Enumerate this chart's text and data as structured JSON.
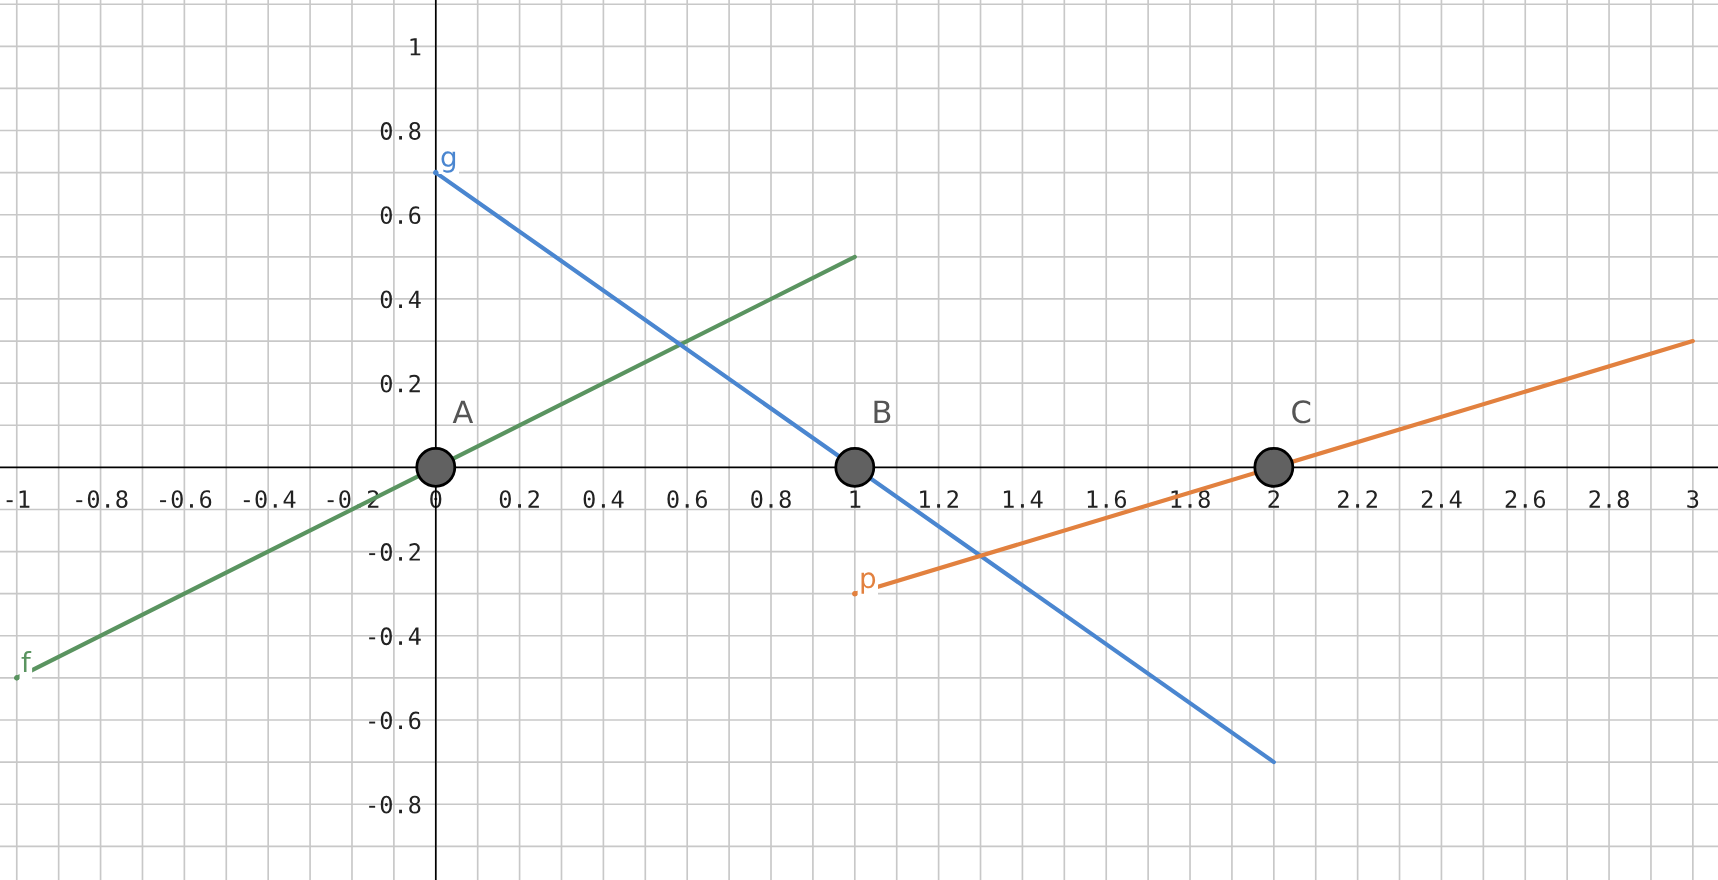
{
  "chart_data": {
    "type": "line",
    "xlim": [
      -1.04,
      3.06
    ],
    "ylim": [
      -0.98,
      1.11
    ],
    "xticks": [
      {
        "value": -1,
        "label": "-1"
      },
      {
        "value": -0.9,
        "label": null
      },
      {
        "value": -0.8,
        "label": "-0.8"
      },
      {
        "value": -0.7,
        "label": null
      },
      {
        "value": -0.6,
        "label": "-0.6"
      },
      {
        "value": -0.5,
        "label": null
      },
      {
        "value": -0.4,
        "label": "-0.4"
      },
      {
        "value": -0.3,
        "label": null
      },
      {
        "value": -0.2,
        "label": "-0.2"
      },
      {
        "value": -0.1,
        "label": null
      },
      0,
      {
        "value": 0.1,
        "label": null
      },
      0.2,
      {
        "value": 0.3,
        "label": null
      },
      0.4,
      {
        "value": 0.5,
        "label": null
      },
      0.6,
      {
        "value": 0.7,
        "label": null
      },
      0.8,
      {
        "value": 0.9,
        "label": null
      },
      1,
      {
        "value": 1.1,
        "label": null
      },
      1.2,
      {
        "value": 1.3,
        "label": null
      },
      1.4,
      {
        "value": 1.5,
        "label": null
      },
      1.6,
      {
        "value": 1.7,
        "label": null
      },
      1.8,
      {
        "value": 1.9,
        "label": null
      },
      2,
      {
        "value": 2.1,
        "label": null
      },
      2.2,
      {
        "value": 2.3,
        "label": null
      },
      2.4,
      {
        "value": 2.5,
        "label": null
      },
      2.6,
      {
        "value": 2.7,
        "label": null
      },
      2.8,
      {
        "value": 2.9,
        "label": null
      },
      3
    ],
    "yticks": [
      {
        "value": -0.9,
        "label": null
      },
      {
        "value": -0.8,
        "label": "-0.8"
      },
      {
        "value": -0.7,
        "label": null
      },
      {
        "value": -0.6,
        "label": "-0.6"
      },
      {
        "value": -0.5,
        "label": null
      },
      {
        "value": -0.4,
        "label": "-0.4"
      },
      {
        "value": -0.3,
        "label": null
      },
      {
        "value": -0.2,
        "label": "-0.2"
      },
      {
        "value": -0.1,
        "label": null
      },
      {
        "value": 0.1,
        "label": null
      },
      0.2,
      {
        "value": 0.3,
        "label": null
      },
      0.4,
      {
        "value": 0.5,
        "label": null
      },
      0.6,
      {
        "value": 0.7,
        "label": null
      },
      0.8,
      {
        "value": 0.9,
        "label": null
      },
      1,
      {
        "value": 1.1,
        "label": null
      }
    ],
    "grid": true,
    "marker": "none",
    "line_style": "solid",
    "series": [
      {
        "name": "f",
        "color": "#5a9460",
        "x": [
          -1,
          1
        ],
        "values": [
          -0.5,
          0.5
        ]
      },
      {
        "name": "g",
        "color": "#4a86d0",
        "x": [
          0,
          2
        ],
        "values": [
          0.7,
          -0.7
        ]
      },
      {
        "name": "p",
        "color": "#e2813f",
        "x": [
          1,
          3
        ],
        "values": [
          -0.3,
          0.3
        ]
      },
      {
        "type": "scatter",
        "color": "#616161",
        "marker": "circle",
        "x": [
          0,
          1,
          2
        ],
        "values": [
          0,
          0,
          0
        ]
      }
    ],
    "annotations": [
      {
        "text": "A",
        "x": 0,
        "y": 0
      },
      {
        "text": "B",
        "x": 1,
        "y": 0
      },
      {
        "text": "C",
        "x": 2,
        "y": 0
      }
    ]
  }
}
